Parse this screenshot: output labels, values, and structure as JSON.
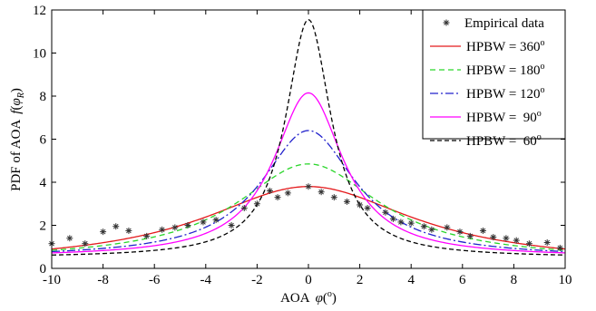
{
  "chart_data": {
    "type": "line",
    "title": "",
    "xlabel": {
      "main": "AOA",
      "symbol": "φ",
      "unit_open": "(",
      "unit_sup": "o",
      "unit_close": ")"
    },
    "ylabel": {
      "main": "PDF of AOA",
      "func": "f",
      "open": "(",
      "symbol": "φ",
      "sub": "R",
      "close": ")"
    },
    "xlim": [
      -10,
      10
    ],
    "ylim": [
      0,
      12
    ],
    "xticks": [
      -10,
      -8,
      -6,
      -4,
      -2,
      0,
      2,
      4,
      6,
      8,
      10
    ],
    "yticks": [
      0,
      2,
      4,
      6,
      8,
      10,
      12
    ],
    "grid": false,
    "legend_position": "top-right",
    "scatter": {
      "name": "Empirical data",
      "marker": "*",
      "color": "#000000",
      "x": [
        -10,
        -9.3,
        -8.7,
        -8.0,
        -7.5,
        -7.0,
        -6.3,
        -5.7,
        -5.2,
        -4.7,
        -4.1,
        -3.6,
        -3.0,
        -2.5,
        -2.0,
        -1.5,
        -1.2,
        -0.8,
        0,
        0.5,
        1.0,
        1.5,
        2.0,
        2.3,
        3.0,
        3.3,
        3.6,
        4.0,
        4.5,
        4.8,
        5.4,
        5.9,
        6.3,
        6.8,
        7.2,
        7.7,
        8.1,
        8.6,
        9.3,
        9.8
      ],
      "y": [
        1.15,
        1.4,
        1.15,
        1.7,
        1.95,
        1.75,
        1.5,
        1.8,
        1.9,
        2.0,
        2.15,
        2.25,
        2.0,
        2.8,
        3.0,
        3.6,
        3.3,
        3.5,
        3.8,
        3.55,
        3.3,
        3.1,
        2.95,
        2.8,
        2.6,
        2.3,
        2.15,
        2.1,
        1.95,
        1.8,
        1.9,
        1.7,
        1.5,
        1.75,
        1.45,
        1.4,
        1.3,
        1.15,
        1.2,
        0.95
      ]
    },
    "series": [
      {
        "name": "HPBW = 360",
        "sup": "o",
        "color": "#e41a1c",
        "dash": "",
        "peak": 3.8,
        "gamma": 5.0,
        "tail": 0.9
      },
      {
        "name": "HPBW = 180",
        "sup": "o",
        "color": "#2bd62b",
        "dash": "6,4",
        "peak": 4.85,
        "gamma": 3.4,
        "tail": 0.84
      },
      {
        "name": "HPBW = 120",
        "sup": "o",
        "color": "#2222cc",
        "dash": "9,3,2,3",
        "peak": 6.4,
        "gamma": 2.25,
        "tail": 0.78
      },
      {
        "name": "HPBW =  90",
        "sup": "o",
        "color": "#ff00ff",
        "dash": "",
        "peak": 8.15,
        "gamma": 1.65,
        "tail": 0.72
      },
      {
        "name": "HPBW =  60",
        "sup": "o",
        "color": "#000000",
        "dash": "5,3",
        "peak": 11.55,
        "gamma": 1.07,
        "tail": 0.62
      }
    ]
  }
}
